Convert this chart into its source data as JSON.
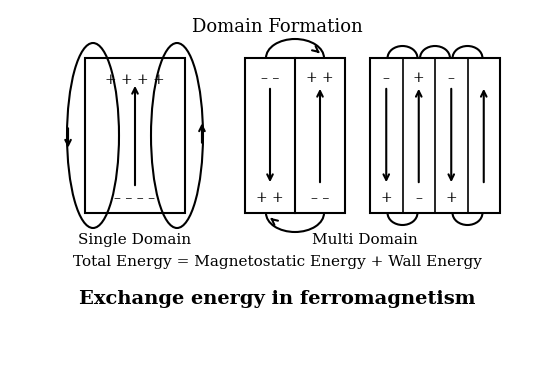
{
  "title": "Domain Formation",
  "subtitle": "Total Energy = Magnetostatic Energy + Wall Energy",
  "footer": "Exchange energy in ferromagnetism",
  "single_domain_label": "Single Domain",
  "multi_domain_label": "Multi Domain",
  "bg_color": "#ffffff",
  "text_color": "#000000",
  "line_color": "#000000",
  "figsize": [
    5.55,
    3.76
  ],
  "dpi": 100
}
